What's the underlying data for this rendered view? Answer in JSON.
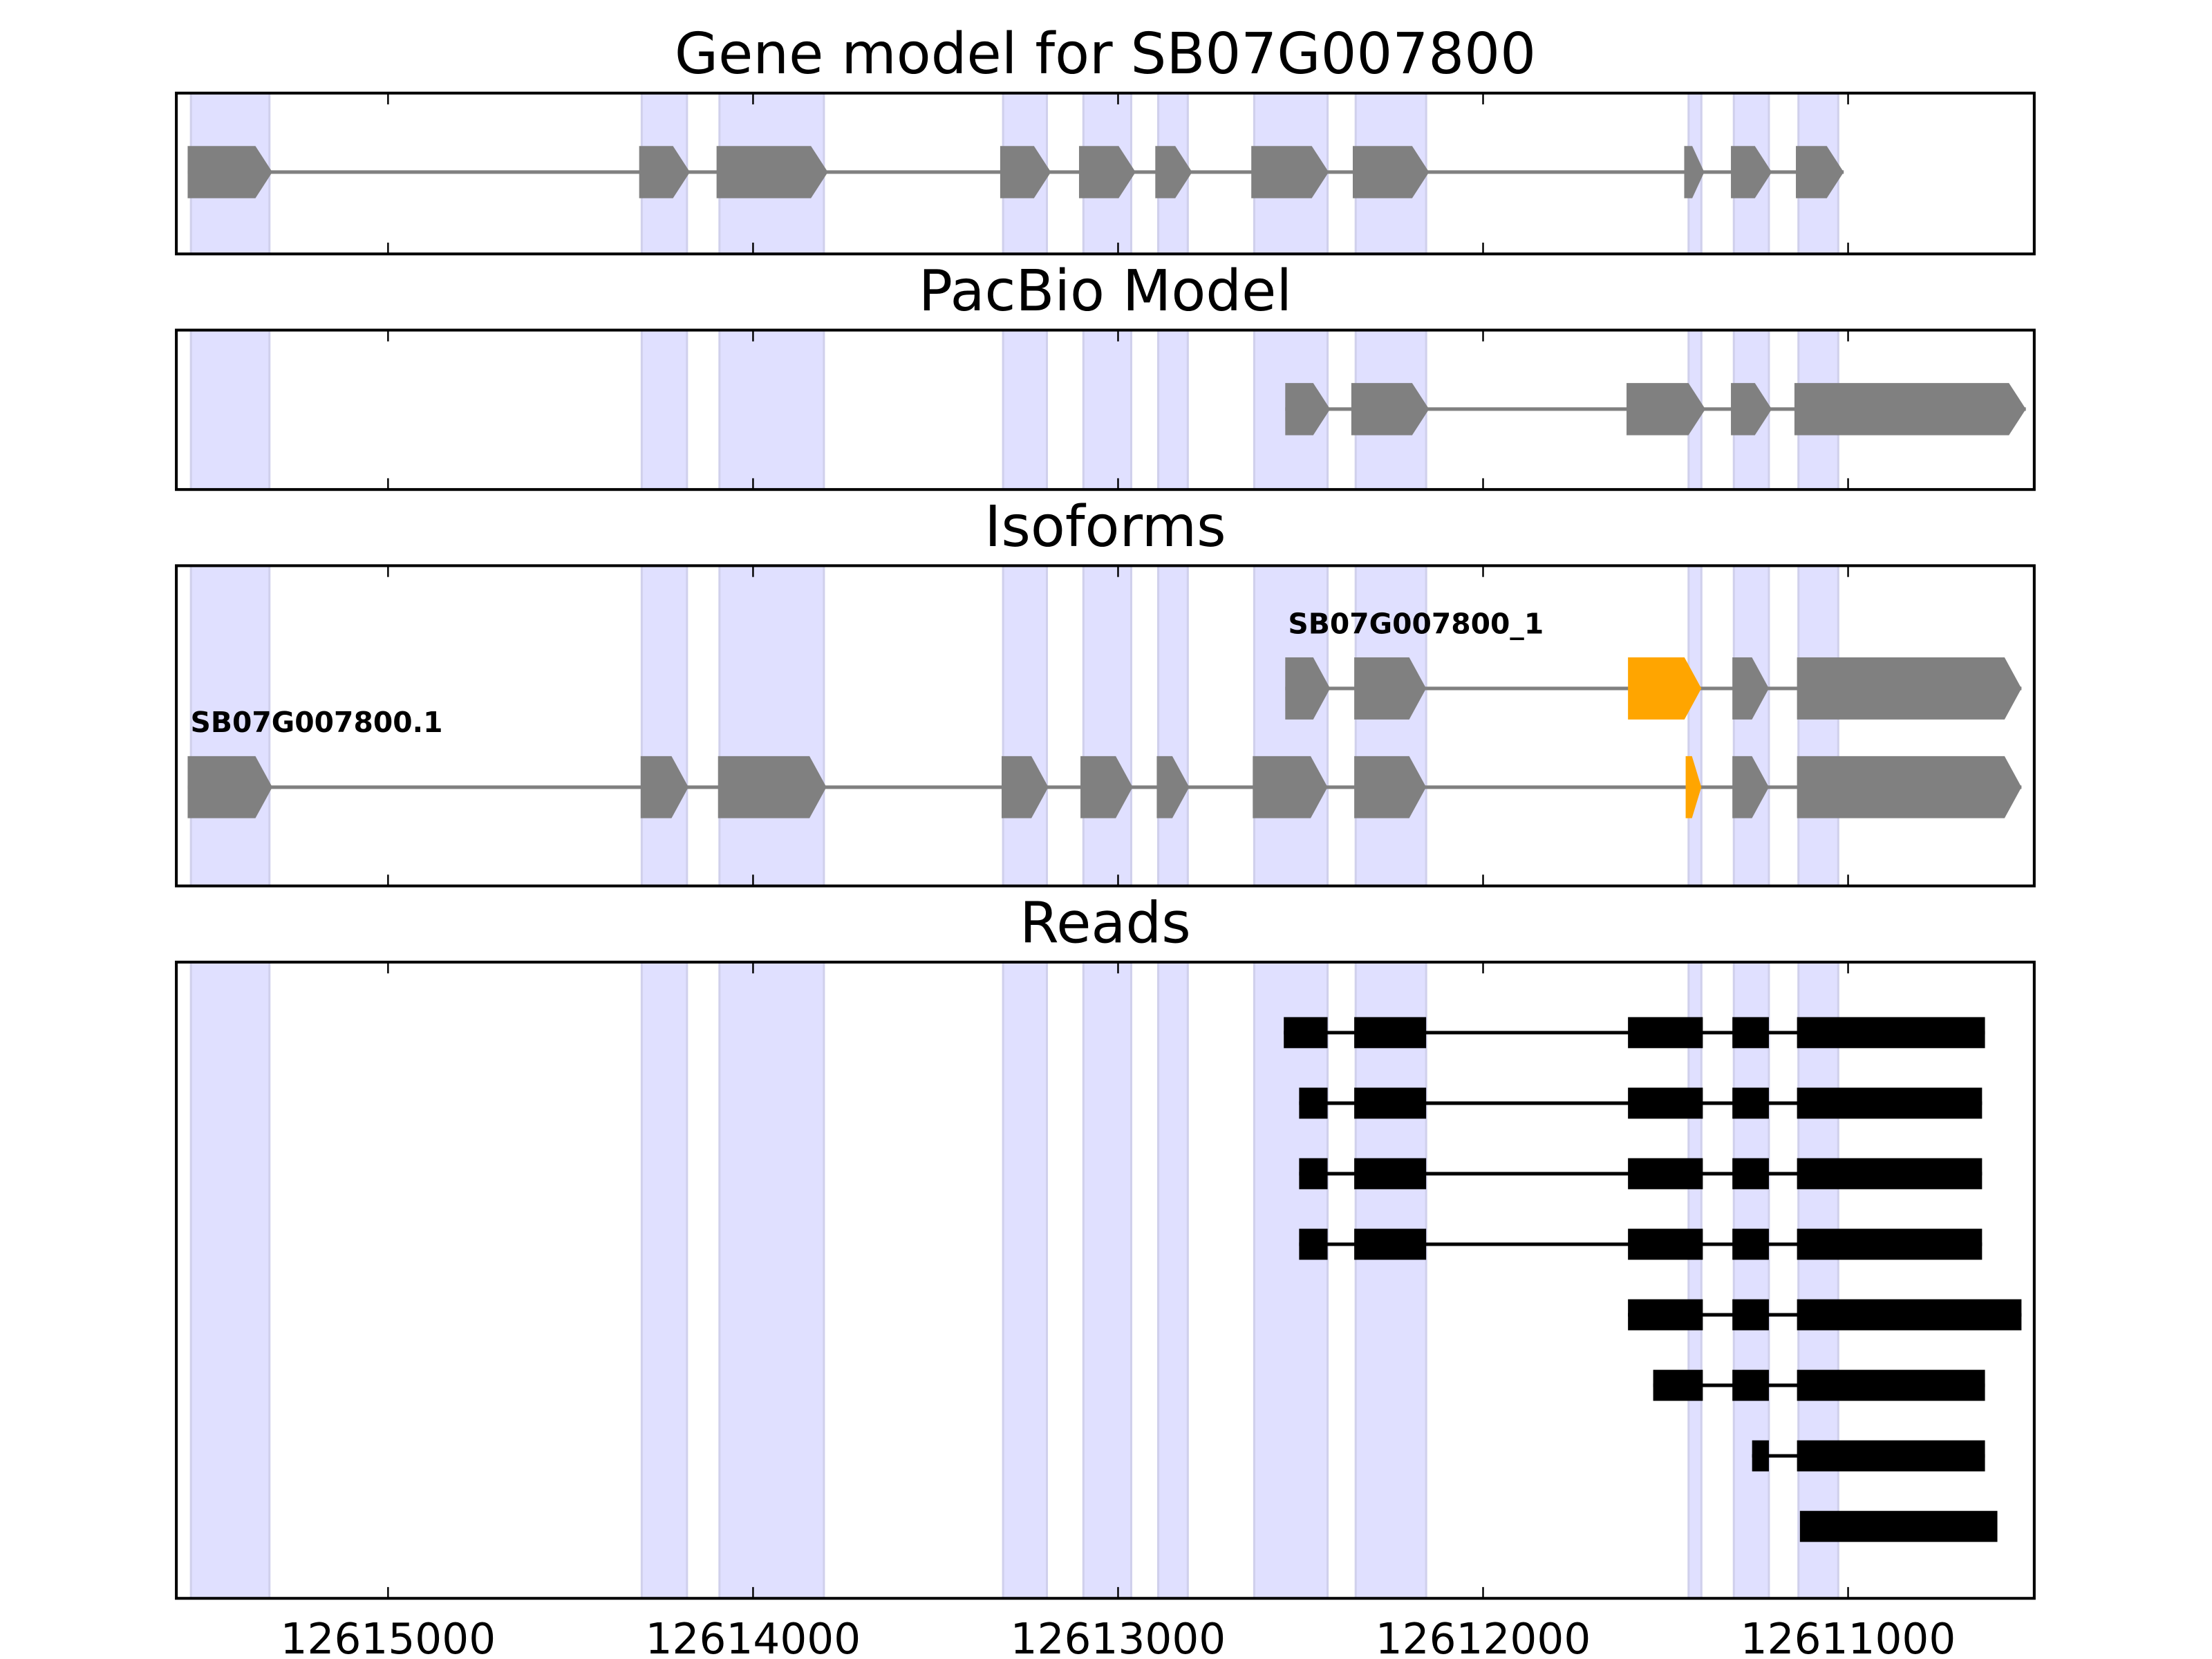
{
  "chart_data": {
    "type": "gene-track",
    "xlim": [
      12615580,
      12610490
    ],
    "x_ticks": [
      12615000,
      12614000,
      12613000,
      12612000,
      12611000
    ],
    "x_tick_labels": [
      "12615000",
      "12614000",
      "12613000",
      "12612000",
      "12611000"
    ],
    "colors": {
      "exon": "#808080",
      "highlight": "#FFA500",
      "read": "#000000",
      "shade": "#E0E0FF"
    },
    "shaded_regions": [
      [
        12615540,
        12615325
      ],
      [
        12614305,
        12614181
      ],
      [
        12614092,
        12613806
      ],
      [
        12613315,
        12613195
      ],
      [
        12613095,
        12612964
      ],
      [
        12612890,
        12612809
      ],
      [
        12612627,
        12612426
      ],
      [
        12612349,
        12612156
      ],
      [
        12611437,
        12611402
      ],
      [
        12611313,
        12611217
      ],
      [
        12611136,
        12611027
      ]
    ],
    "panels": [
      {
        "title": "Gene model for SB07G007800",
        "kind": "model",
        "tracks": [
          {
            "label": "",
            "exons": [
              {
                "s": 12615549,
                "e": 12615317
              },
              {
                "s": 12614312,
                "e": 12614173
              },
              {
                "s": 12614100,
                "e": 12613795
              },
              {
                "s": 12613323,
                "e": 12613184
              },
              {
                "s": 12613107,
                "e": 12612952
              },
              {
                "s": 12612898,
                "e": 12612797
              },
              {
                "s": 12612635,
                "e": 12612423
              },
              {
                "s": 12612357,
                "e": 12612148
              },
              {
                "s": 12611449,
                "e": 12611394
              },
              {
                "s": 12611321,
                "e": 12611209
              },
              {
                "s": 12611143,
                "e": 12611012
              }
            ]
          }
        ]
      },
      {
        "title": "PacBio Model",
        "kind": "model",
        "tracks": [
          {
            "label": "",
            "exons": [
              {
                "s": 12612542,
                "e": 12612419
              },
              {
                "s": 12612361,
                "e": 12612148
              },
              {
                "s": 12611607,
                "e": 12611391
              },
              {
                "s": 12611321,
                "e": 12611209
              },
              {
                "s": 12611147,
                "e": 12610513
              }
            ]
          }
        ]
      },
      {
        "title": "Isoforms",
        "kind": "model",
        "tracks": [
          {
            "label": "SB07G007800_1",
            "exons": [
              {
                "s": 12612542,
                "e": 12612419
              },
              {
                "s": 12612353,
                "e": 12612156
              },
              {
                "s": 12611603,
                "e": 12611402,
                "hl": true
              },
              {
                "s": 12611317,
                "e": 12611217
              },
              {
                "s": 12611140,
                "e": 12610525
              }
            ]
          },
          {
            "label": "SB07G007800.1",
            "exons": [
              {
                "s": 12615549,
                "e": 12615317
              },
              {
                "s": 12614308,
                "e": 12614177
              },
              {
                "s": 12614096,
                "e": 12613799
              },
              {
                "s": 12613319,
                "e": 12613191
              },
              {
                "s": 12613103,
                "e": 12612960
              },
              {
                "s": 12612894,
                "e": 12612805
              },
              {
                "s": 12612631,
                "e": 12612426
              },
              {
                "s": 12612353,
                "e": 12612156
              },
              {
                "s": 12611445,
                "e": 12611402,
                "hl": true
              },
              {
                "s": 12611317,
                "e": 12611217
              },
              {
                "s": 12611140,
                "e": 12610525
              }
            ]
          }
        ]
      },
      {
        "title": "Reads",
        "kind": "reads",
        "tracks": [
          {
            "label": "",
            "exons": [
              {
                "s": 12612546,
                "e": 12612426
              },
              {
                "s": 12612353,
                "e": 12612156
              },
              {
                "s": 12611603,
                "e": 12611398
              },
              {
                "s": 12611317,
                "e": 12611217
              },
              {
                "s": 12611140,
                "e": 12610625
              }
            ]
          },
          {
            "label": "",
            "exons": [
              {
                "s": 12612504,
                "e": 12612426
              },
              {
                "s": 12612353,
                "e": 12612156
              },
              {
                "s": 12611603,
                "e": 12611398
              },
              {
                "s": 12611317,
                "e": 12611217
              },
              {
                "s": 12611140,
                "e": 12610633
              }
            ]
          },
          {
            "label": "",
            "exons": [
              {
                "s": 12612504,
                "e": 12612426
              },
              {
                "s": 12612353,
                "e": 12612156
              },
              {
                "s": 12611603,
                "e": 12611398
              },
              {
                "s": 12611317,
                "e": 12611217
              },
              {
                "s": 12611140,
                "e": 12610633
              }
            ]
          },
          {
            "label": "",
            "exons": [
              {
                "s": 12612504,
                "e": 12612426
              },
              {
                "s": 12612353,
                "e": 12612156
              },
              {
                "s": 12611603,
                "e": 12611398
              },
              {
                "s": 12611317,
                "e": 12611217
              },
              {
                "s": 12611140,
                "e": 12610633
              }
            ]
          },
          {
            "label": "",
            "exons": [
              {
                "s": 12611603,
                "e": 12611398
              },
              {
                "s": 12611317,
                "e": 12611217
              },
              {
                "s": 12611140,
                "e": 12610525
              }
            ]
          },
          {
            "label": "",
            "exons": [
              {
                "s": 12611534,
                "e": 12611398
              },
              {
                "s": 12611317,
                "e": 12611217
              },
              {
                "s": 12611140,
                "e": 12610625
              }
            ]
          },
          {
            "label": "",
            "exons": [
              {
                "s": 12611263,
                "e": 12611217
              },
              {
                "s": 12611140,
                "e": 12610625
              }
            ]
          },
          {
            "label": "",
            "exons": [
              {
                "s": 12611132,
                "e": 12610591
              }
            ]
          }
        ]
      }
    ]
  }
}
